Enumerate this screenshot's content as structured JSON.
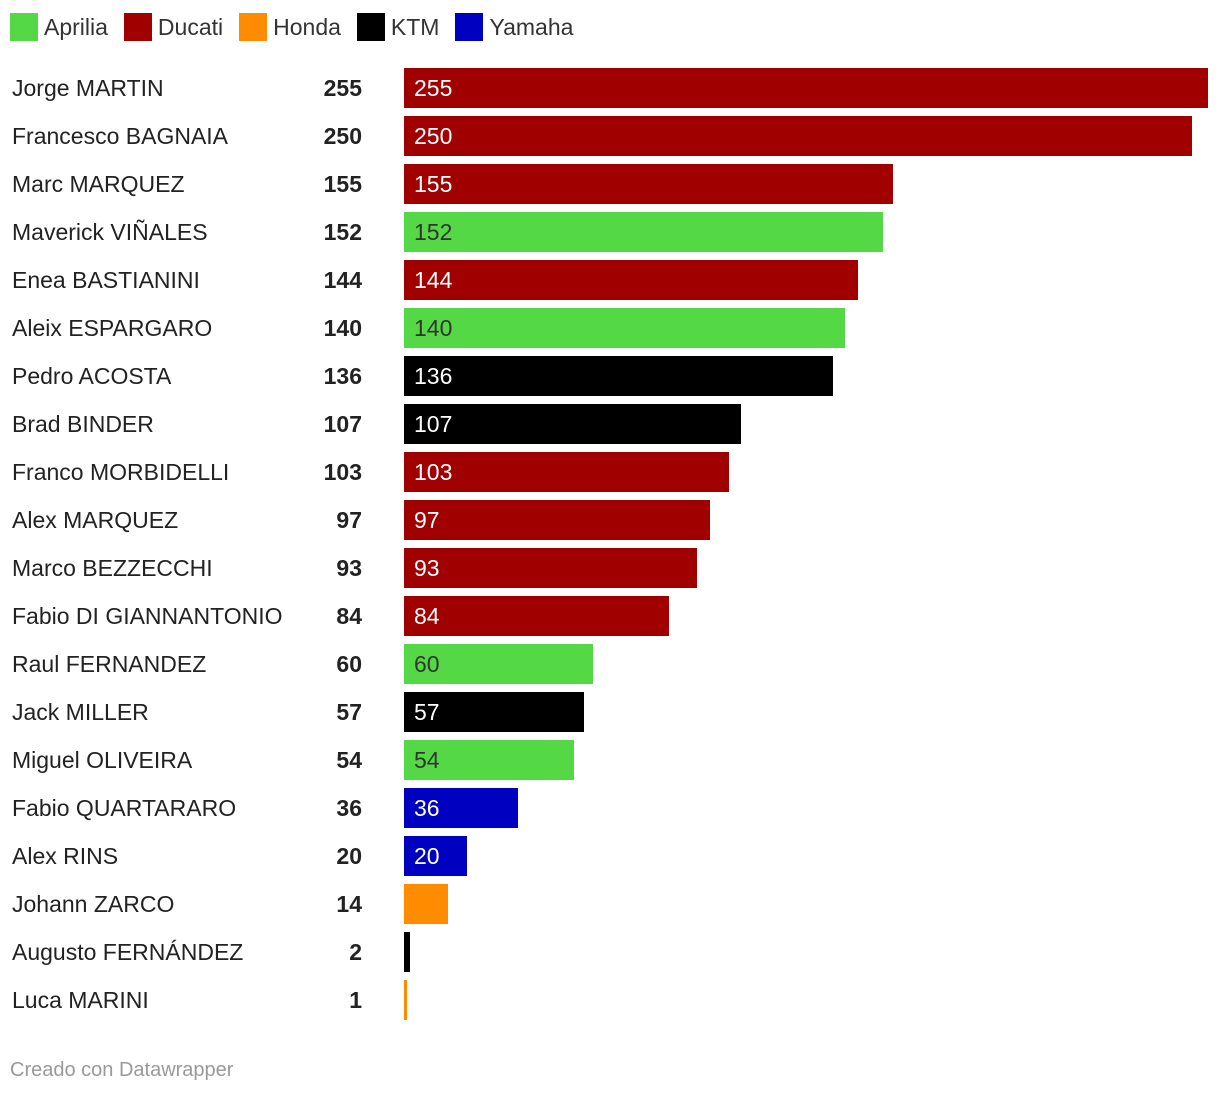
{
  "chart_data": {
    "type": "bar",
    "orientation": "horizontal",
    "legend": [
      {
        "name": "Aprilia",
        "color": "#55d845"
      },
      {
        "name": "Ducati",
        "color": "#a00000"
      },
      {
        "name": "Honda",
        "color": "#ff8c00"
      },
      {
        "name": "KTM",
        "color": "#000000"
      },
      {
        "name": "Yamaha",
        "color": "#0000c0"
      }
    ],
    "xlim": [
      0,
      255
    ],
    "rows": [
      {
        "name": "Jorge MARTIN",
        "value": 255,
        "team": "Ducati",
        "bar_label": "255"
      },
      {
        "name": "Francesco BAGNAIA",
        "value": 250,
        "team": "Ducati",
        "bar_label": "250"
      },
      {
        "name": "Marc MARQUEZ",
        "value": 155,
        "team": "Ducati",
        "bar_label": "155"
      },
      {
        "name": "Maverick VIÑALES",
        "value": 152,
        "team": "Aprilia",
        "bar_label": "152"
      },
      {
        "name": "Enea BASTIANINI",
        "value": 144,
        "team": "Ducati",
        "bar_label": "144"
      },
      {
        "name": "Aleix ESPARGARO",
        "value": 140,
        "team": "Aprilia",
        "bar_label": "140"
      },
      {
        "name": "Pedro ACOSTA",
        "value": 136,
        "team": "KTM",
        "bar_label": "136"
      },
      {
        "name": "Brad BINDER",
        "value": 107,
        "team": "KTM",
        "bar_label": "107"
      },
      {
        "name": "Franco MORBIDELLI",
        "value": 103,
        "team": "Ducati",
        "bar_label": "103"
      },
      {
        "name": "Alex MARQUEZ",
        "value": 97,
        "team": "Ducati",
        "bar_label": "97"
      },
      {
        "name": "Marco BEZZECCHI",
        "value": 93,
        "team": "Ducati",
        "bar_label": "93"
      },
      {
        "name": "Fabio DI GIANNANTONIO",
        "value": 84,
        "team": "Ducati",
        "bar_label": "84"
      },
      {
        "name": "Raul FERNANDEZ",
        "value": 60,
        "team": "Aprilia",
        "bar_label": "60"
      },
      {
        "name": "Jack MILLER",
        "value": 57,
        "team": "KTM",
        "bar_label": "57"
      },
      {
        "name": "Miguel OLIVEIRA",
        "value": 54,
        "team": "Aprilia",
        "bar_label": "54"
      },
      {
        "name": "Fabio QUARTARARO",
        "value": 36,
        "team": "Yamaha",
        "bar_label": "36"
      },
      {
        "name": "Alex RINS",
        "value": 20,
        "team": "Yamaha",
        "bar_label": "20"
      },
      {
        "name": "Johann ZARCO",
        "value": 14,
        "team": "Honda",
        "bar_label": ""
      },
      {
        "name": "Augusto FERNÁNDEZ",
        "value": 2,
        "team": "KTM",
        "bar_label": ""
      },
      {
        "name": "Luca MARINI",
        "value": 1,
        "team": "Honda",
        "bar_label": ""
      }
    ]
  },
  "footer": "Creado con Datawrapper"
}
